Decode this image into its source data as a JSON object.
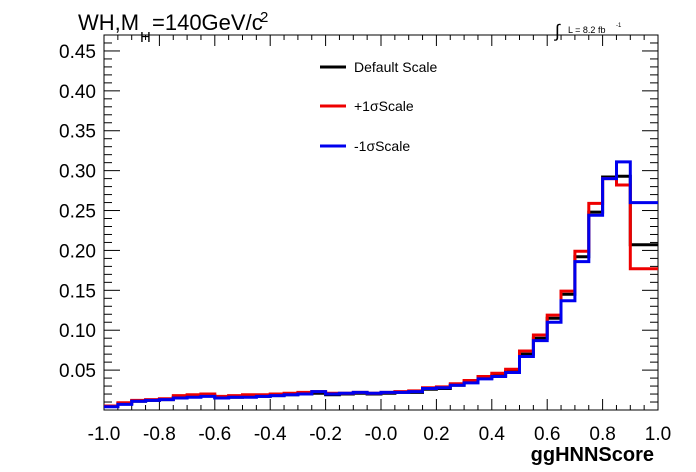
{
  "chart_data": {
    "type": "line",
    "title_main": "WH,M",
    "title_sub": "H",
    "title_rest": "=140GeV/c",
    "title_sup": "2",
    "lumi_label": "L = 8.2 fb",
    "lumi_sup": "-1",
    "xlabel": "ggHNNScore",
    "ylabel": "",
    "xlim": [
      -1.0,
      1.0
    ],
    "ylim": [
      0.0,
      0.47
    ],
    "x_ticks": [
      -1.0,
      -0.8,
      -0.6,
      -0.4,
      -0.2,
      0.0,
      0.2,
      0.4,
      0.6,
      0.8,
      1.0
    ],
    "x_tick_labels": [
      "-1.0",
      "-0.8",
      "-0.6",
      "-0.4",
      "-0.2",
      "-0.0",
      "0.2",
      "0.4",
      "0.6",
      "0.8",
      "1.0"
    ],
    "y_ticks": [
      0.05,
      0.1,
      0.15,
      0.2,
      0.25,
      0.3,
      0.35,
      0.4,
      0.45
    ],
    "y_tick_labels": [
      "0.05",
      "0.10",
      "0.15",
      "0.20",
      "0.25",
      "0.30",
      "0.35",
      "0.40",
      "0.45"
    ],
    "bin_edges": [
      -1.0,
      -0.95,
      -0.9,
      -0.85,
      -0.8,
      -0.75,
      -0.7,
      -0.65,
      -0.6,
      -0.55,
      -0.5,
      -0.45,
      -0.4,
      -0.35,
      -0.3,
      -0.25,
      -0.2,
      -0.15,
      -0.1,
      -0.05,
      0.0,
      0.05,
      0.1,
      0.15,
      0.2,
      0.25,
      0.3,
      0.35,
      0.4,
      0.45,
      0.5,
      0.55,
      0.6,
      0.65,
      0.7,
      0.75,
      0.8,
      0.85,
      0.9,
      0.95,
      1.0
    ],
    "series": [
      {
        "name": "Default Scale",
        "color": "#000000",
        "values": [
          0.005,
          0.008,
          0.011,
          0.012,
          0.013,
          0.016,
          0.017,
          0.018,
          0.015,
          0.016,
          0.017,
          0.017,
          0.018,
          0.019,
          0.02,
          0.021,
          0.019,
          0.02,
          0.021,
          0.02,
          0.021,
          0.022,
          0.022,
          0.026,
          0.027,
          0.031,
          0.035,
          0.04,
          0.043,
          0.048,
          0.07,
          0.09,
          0.115,
          0.145,
          0.192,
          0.248,
          0.292,
          0.293,
          0.207,
          0.207
        ]
      },
      {
        "name": "+1σScale",
        "color": "#ee0000",
        "values": [
          0.005,
          0.009,
          0.012,
          0.013,
          0.014,
          0.018,
          0.019,
          0.02,
          0.017,
          0.018,
          0.019,
          0.019,
          0.02,
          0.021,
          0.022,
          0.023,
          0.021,
          0.021,
          0.022,
          0.021,
          0.022,
          0.023,
          0.024,
          0.028,
          0.029,
          0.033,
          0.037,
          0.042,
          0.046,
          0.051,
          0.074,
          0.094,
          0.119,
          0.149,
          0.199,
          0.259,
          0.29,
          0.282,
          0.177,
          0.177
        ]
      },
      {
        "name": "-1σScale",
        "color": "#0000ee",
        "values": [
          0.004,
          0.007,
          0.011,
          0.012,
          0.013,
          0.015,
          0.016,
          0.017,
          0.015,
          0.016,
          0.016,
          0.017,
          0.018,
          0.019,
          0.02,
          0.023,
          0.02,
          0.021,
          0.022,
          0.021,
          0.022,
          0.022,
          0.023,
          0.027,
          0.028,
          0.031,
          0.034,
          0.039,
          0.042,
          0.047,
          0.067,
          0.087,
          0.11,
          0.137,
          0.186,
          0.244,
          0.29,
          0.311,
          0.26,
          0.26
        ]
      }
    ],
    "legend_position": "top-center",
    "grid": false
  }
}
